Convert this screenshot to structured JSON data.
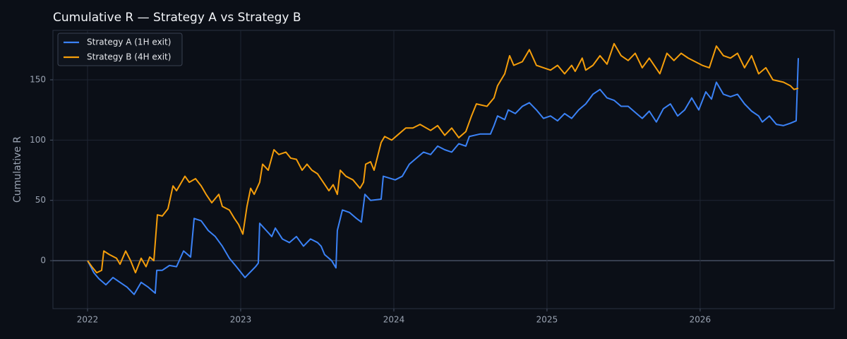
{
  "chart_data": {
    "type": "line",
    "title": "Cumulative R — Strategy A vs Strategy B",
    "y_label": "Cumulative R",
    "xlim": [
      2021.774,
      2026.876
    ],
    "ylim": [
      -39.8,
      191
    ],
    "xticks": [
      2022,
      2023,
      2024,
      2025,
      2026
    ],
    "yticks": [
      0,
      50,
      100,
      150
    ],
    "grid": true,
    "zero_line": true,
    "legend": "upper left",
    "series": [
      {
        "name": "Strategy A (1H exit)",
        "color": "#3b82f6",
        "x": [
          2022.0,
          2022.041,
          2022.074,
          2022.12,
          2022.166,
          2022.212,
          2022.258,
          2022.304,
          2022.35,
          2022.396,
          2022.442,
          2022.452,
          2022.488,
          2022.535,
          2022.581,
          2022.627,
          2022.673,
          2022.696,
          2022.742,
          2022.788,
          2022.834,
          2022.88,
          2022.926,
          2022.972,
          2023.028,
          2023.097,
          2023.115,
          2023.124,
          2023.203,
          2023.226,
          2023.272,
          2023.318,
          2023.364,
          2023.41,
          2023.456,
          2023.502,
          2023.525,
          2023.548,
          2023.594,
          2023.622,
          2023.631,
          2023.664,
          2023.71,
          2023.756,
          2023.788,
          2023.811,
          2023.848,
          2023.917,
          2023.931,
          2024.009,
          2024.055,
          2024.101,
          2024.147,
          2024.194,
          2024.24,
          2024.286,
          2024.332,
          2024.378,
          2024.424,
          2024.47,
          2024.493,
          2024.562,
          2024.631,
          2024.654,
          2024.677,
          2024.724,
          2024.747,
          2024.793,
          2024.839,
          2024.885,
          2024.931,
          2024.977,
          2025.023,
          2025.069,
          2025.115,
          2025.161,
          2025.207,
          2025.253,
          2025.3,
          2025.346,
          2025.392,
          2025.438,
          2025.484,
          2025.53,
          2025.576,
          2025.622,
          2025.668,
          2025.714,
          2025.76,
          2025.806,
          2025.853,
          2025.899,
          2025.945,
          2025.991,
          2026.037,
          2026.074,
          2026.106,
          2026.152,
          2026.198,
          2026.244,
          2026.29,
          2026.336,
          2026.382,
          2026.406,
          2026.452,
          2026.498,
          2026.544,
          2026.59,
          2026.627,
          2026.641
        ],
        "values": [
          0,
          -10,
          -15,
          -20,
          -14,
          -18,
          -22,
          -28,
          -18,
          -22,
          -27,
          -8,
          -8,
          -4,
          -5,
          8,
          3,
          35,
          33,
          25,
          20,
          12,
          2,
          -5,
          -14,
          -5,
          -2,
          31,
          20,
          27,
          18,
          15,
          20,
          12,
          18,
          15,
          12,
          5,
          0,
          -6,
          25,
          42,
          40,
          35,
          32,
          55,
          50,
          51,
          70,
          67,
          70,
          80,
          85,
          90,
          88,
          95,
          92,
          90,
          97,
          95,
          103,
          105,
          105,
          112,
          120,
          117,
          125,
          122,
          128,
          131,
          125,
          118,
          120,
          116,
          122,
          118,
          125,
          130,
          138,
          142,
          135,
          133,
          128,
          128,
          123,
          118,
          124,
          115,
          126,
          130,
          120,
          125,
          135,
          125,
          140,
          134,
          148,
          138,
          136,
          138,
          130,
          124,
          120,
          115,
          120,
          113,
          112,
          114,
          116,
          168
        ]
      },
      {
        "name": "Strategy B (4H exit)",
        "color": "#f59e0b",
        "x": [
          2022.0,
          2022.028,
          2022.06,
          2022.092,
          2022.106,
          2022.143,
          2022.189,
          2022.212,
          2022.249,
          2022.281,
          2022.313,
          2022.35,
          2022.382,
          2022.406,
          2022.433,
          2022.456,
          2022.488,
          2022.525,
          2022.558,
          2022.581,
          2022.636,
          2022.664,
          2022.705,
          2022.742,
          2022.774,
          2022.811,
          2022.857,
          2022.88,
          2022.926,
          2022.959,
          2022.986,
          2023.014,
          2023.041,
          2023.065,
          2023.088,
          2023.124,
          2023.143,
          2023.18,
          2023.217,
          2023.249,
          2023.295,
          2023.327,
          2023.364,
          2023.401,
          2023.433,
          2023.465,
          2023.502,
          2023.539,
          2023.576,
          2023.604,
          2023.631,
          2023.65,
          2023.687,
          2023.733,
          2023.779,
          2023.802,
          2023.816,
          2023.848,
          2023.871,
          2023.917,
          2023.94,
          2023.986,
          2024.032,
          2024.078,
          2024.124,
          2024.171,
          2024.24,
          2024.286,
          2024.332,
          2024.378,
          2024.424,
          2024.47,
          2024.507,
          2024.539,
          2024.608,
          2024.654,
          2024.677,
          2024.724,
          2024.756,
          2024.783,
          2024.839,
          2024.885,
          2024.931,
          2024.977,
          2025.023,
          2025.069,
          2025.115,
          2025.161,
          2025.184,
          2025.23,
          2025.253,
          2025.3,
          2025.346,
          2025.392,
          2025.438,
          2025.484,
          2025.53,
          2025.576,
          2025.622,
          2025.668,
          2025.737,
          2025.783,
          2025.829,
          2025.876,
          2025.922,
          2025.968,
          2026.014,
          2026.06,
          2026.106,
          2026.152,
          2026.198,
          2026.244,
          2026.29,
          2026.336,
          2026.382,
          2026.429,
          2026.475,
          2026.544,
          2026.59,
          2026.613,
          2026.641
        ],
        "values": [
          0,
          -5,
          -10,
          -8,
          8,
          5,
          2,
          -3,
          8,
          0,
          -10,
          2,
          -5,
          3,
          0,
          38,
          37,
          43,
          62,
          58,
          70,
          65,
          68,
          62,
          55,
          48,
          55,
          45,
          42,
          35,
          30,
          22,
          45,
          60,
          55,
          65,
          80,
          75,
          92,
          88,
          90,
          85,
          84,
          75,
          80,
          75,
          72,
          65,
          58,
          63,
          55,
          75,
          70,
          67,
          60,
          65,
          80,
          82,
          75,
          98,
          103,
          100,
          105,
          110,
          110,
          113,
          108,
          112,
          104,
          110,
          102,
          107,
          120,
          130,
          128,
          135,
          145,
          155,
          170,
          162,
          165,
          175,
          162,
          160,
          158,
          162,
          155,
          162,
          157,
          168,
          158,
          162,
          170,
          163,
          180,
          170,
          166,
          172,
          160,
          168,
          155,
          172,
          166,
          172,
          168,
          165,
          162,
          160,
          178,
          170,
          168,
          172,
          160,
          170,
          155,
          160,
          150,
          148,
          145,
          142,
          143
        ]
      }
    ]
  }
}
